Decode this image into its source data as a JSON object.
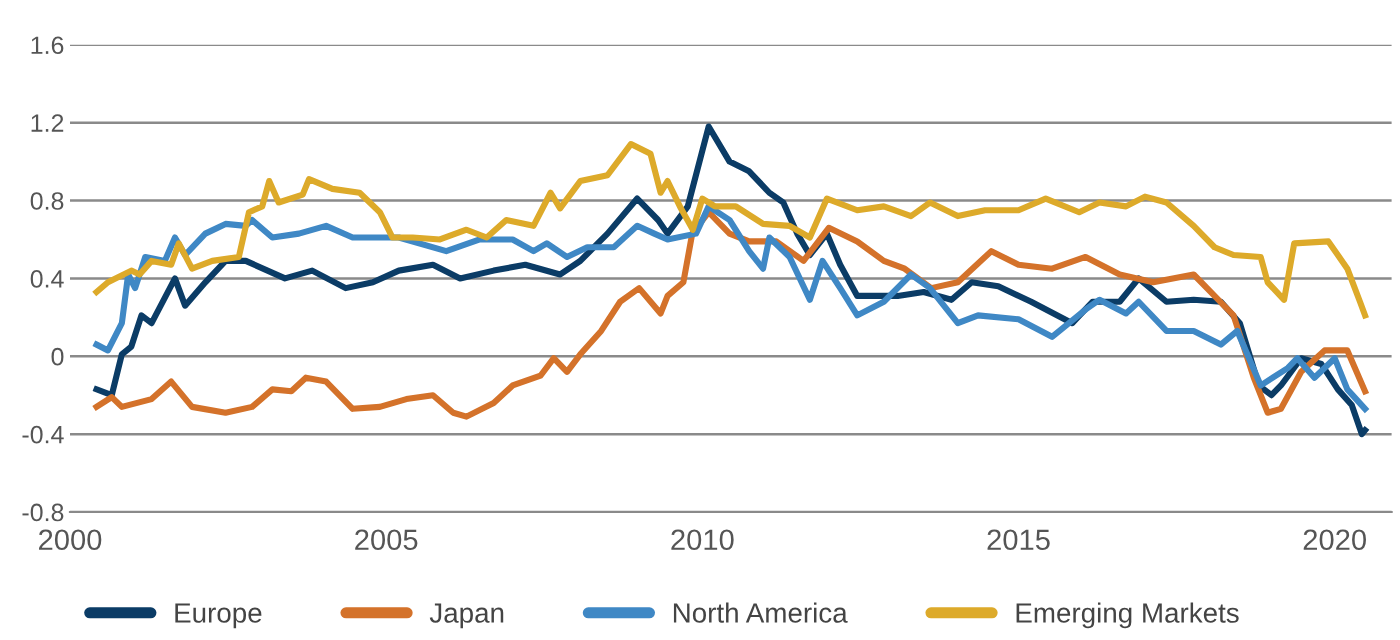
{
  "chart_data": {
    "type": "line",
    "xlim": [
      2000,
      2020.9
    ],
    "xticks": [
      2000,
      2005,
      2010,
      2015,
      2020
    ],
    "ylim": [
      -0.8,
      1.6
    ],
    "yticks": [
      {
        "value": -0.8,
        "label": "-0.8"
      },
      {
        "value": -0.4,
        "label": "-0.4"
      },
      0,
      0.4,
      0.8,
      1.2,
      1.6
    ],
    "grid": "y",
    "legend": "bottom",
    "line_style": "solid",
    "marker": "none",
    "series": [
      {
        "name": "Europe",
        "color": "#0b3c66",
        "x": [
          2000.42,
          2000.66,
          2000.82,
          2000.97,
          2001.13,
          2001.29,
          2001.66,
          2001.82,
          2002.14,
          2002.46,
          2002.78,
          2003.4,
          2003.83,
          2004.36,
          2004.79,
          2005.2,
          2005.74,
          2006.17,
          2006.7,
          2007.2,
          2007.75,
          2008.07,
          2008.5,
          2008.97,
          2009.3,
          2009.45,
          2009.77,
          2010.1,
          2010.43,
          2010.74,
          2011.06,
          2011.28,
          2011.5,
          2011.7,
          2011.97,
          2012.18,
          2012.45,
          2012.66,
          2013.09,
          2013.5,
          2013.94,
          2014.26,
          2014.68,
          2015.2,
          2015.85,
          2016.17,
          2016.6,
          2016.9,
          2017.34,
          2017.77,
          2018.2,
          2018.5,
          2018.8,
          2019.0,
          2019.15,
          2019.47,
          2019.79,
          2020.05,
          2020.27,
          2020.43,
          2020.48
        ],
        "values": [
          -0.17,
          -0.2,
          0.01,
          0.05,
          0.21,
          0.17,
          0.4,
          0.26,
          0.38,
          0.49,
          0.49,
          0.4,
          0.44,
          0.35,
          0.38,
          0.44,
          0.47,
          0.4,
          0.44,
          0.47,
          0.42,
          0.49,
          0.63,
          0.81,
          0.7,
          0.63,
          0.77,
          1.18,
          1.0,
          0.95,
          0.84,
          0.79,
          0.63,
          0.52,
          0.63,
          0.47,
          0.31,
          0.31,
          0.31,
          0.33,
          0.29,
          0.38,
          0.36,
          0.28,
          0.17,
          0.28,
          0.28,
          0.4,
          0.28,
          0.29,
          0.28,
          0.17,
          -0.15,
          -0.2,
          -0.15,
          -0.01,
          -0.04,
          -0.17,
          -0.25,
          -0.4,
          -0.38
        ]
      },
      {
        "name": "Japan",
        "color": "#d4722a",
        "x": [
          2000.42,
          2000.66,
          2000.82,
          2001.29,
          2001.6,
          2001.93,
          2002.46,
          2002.88,
          2003.2,
          2003.5,
          2003.73,
          2004.05,
          2004.47,
          2004.9,
          2005.32,
          2005.74,
          2006.06,
          2006.27,
          2006.7,
          2007.0,
          2007.44,
          2007.65,
          2007.86,
          2008.07,
          2008.4,
          2008.7,
          2009.0,
          2009.34,
          2009.45,
          2009.7,
          2009.84,
          2010.1,
          2010.43,
          2010.74,
          2011.17,
          2011.6,
          2012.0,
          2012.45,
          2012.87,
          2013.2,
          2013.62,
          2014.04,
          2014.57,
          2015.0,
          2015.53,
          2016.06,
          2016.6,
          2017.13,
          2017.77,
          2018.1,
          2018.4,
          2018.72,
          2018.94,
          2019.15,
          2019.47,
          2019.84,
          2020.2,
          2020.48
        ],
        "values": [
          -0.26,
          -0.21,
          -0.26,
          -0.22,
          -0.13,
          -0.26,
          -0.29,
          -0.26,
          -0.17,
          -0.18,
          -0.11,
          -0.13,
          -0.27,
          -0.26,
          -0.22,
          -0.2,
          -0.29,
          -0.31,
          -0.24,
          -0.15,
          -0.1,
          -0.01,
          -0.08,
          0.01,
          0.13,
          0.28,
          0.35,
          0.22,
          0.31,
          0.38,
          0.63,
          0.74,
          0.63,
          0.59,
          0.59,
          0.49,
          0.66,
          0.59,
          0.49,
          0.45,
          0.35,
          0.38,
          0.54,
          0.47,
          0.45,
          0.51,
          0.42,
          0.38,
          0.42,
          0.31,
          0.21,
          -0.11,
          -0.29,
          -0.27,
          -0.08,
          0.03,
          0.03,
          -0.18
        ]
      },
      {
        "name": "North America",
        "color": "#3f88c5",
        "x": [
          2000.42,
          2000.6,
          2000.82,
          2000.92,
          2001.03,
          2001.19,
          2001.5,
          2001.66,
          2001.82,
          2002.14,
          2002.46,
          2002.78,
          2002.88,
          2003.2,
          2003.62,
          2004.05,
          2004.47,
          2005.2,
          2005.95,
          2006.48,
          2007.0,
          2007.33,
          2007.54,
          2007.86,
          2008.18,
          2008.6,
          2008.97,
          2009.24,
          2009.45,
          2009.9,
          2010.1,
          2010.43,
          2010.74,
          2010.96,
          2011.06,
          2011.38,
          2011.7,
          2011.9,
          2012.18,
          2012.45,
          2012.87,
          2013.3,
          2013.6,
          2014.04,
          2014.36,
          2015.0,
          2015.53,
          2016.06,
          2016.28,
          2016.7,
          2016.9,
          2017.34,
          2017.77,
          2018.2,
          2018.46,
          2018.83,
          2019.26,
          2019.41,
          2019.68,
          2020.0,
          2020.2,
          2020.48
        ],
        "values": [
          0.06,
          0.03,
          0.17,
          0.42,
          0.35,
          0.51,
          0.49,
          0.61,
          0.52,
          0.63,
          0.68,
          0.67,
          0.7,
          0.61,
          0.63,
          0.67,
          0.61,
          0.61,
          0.54,
          0.6,
          0.6,
          0.54,
          0.58,
          0.51,
          0.56,
          0.56,
          0.67,
          0.63,
          0.6,
          0.63,
          0.77,
          0.7,
          0.54,
          0.45,
          0.61,
          0.51,
          0.29,
          0.49,
          0.35,
          0.21,
          0.28,
          0.42,
          0.35,
          0.17,
          0.21,
          0.19,
          0.1,
          0.24,
          0.29,
          0.22,
          0.28,
          0.13,
          0.13,
          0.06,
          0.13,
          -0.15,
          -0.06,
          -0.01,
          -0.11,
          -0.01,
          -0.17,
          -0.27
        ]
      },
      {
        "name": "Emerging Markets",
        "color": "#ddaa2a",
        "x": [
          2000.42,
          2000.6,
          2000.97,
          2001.1,
          2001.29,
          2001.6,
          2001.72,
          2001.93,
          2002.25,
          2002.67,
          2002.83,
          2003.04,
          2003.15,
          2003.3,
          2003.68,
          2003.78,
          2004.15,
          2004.58,
          2004.9,
          2005.1,
          2005.42,
          2005.85,
          2006.27,
          2006.59,
          2006.9,
          2007.33,
          2007.6,
          2007.75,
          2008.07,
          2008.5,
          2008.87,
          2009.18,
          2009.34,
          2009.45,
          2009.66,
          2009.85,
          2010.0,
          2010.2,
          2010.53,
          2010.96,
          2011.38,
          2011.7,
          2011.97,
          2012.45,
          2012.87,
          2013.3,
          2013.6,
          2014.04,
          2014.47,
          2015.0,
          2015.43,
          2015.96,
          2016.28,
          2016.7,
          2017.0,
          2017.34,
          2017.77,
          2018.1,
          2018.4,
          2018.83,
          2018.94,
          2019.2,
          2019.36,
          2019.9,
          2020.2,
          2020.4,
          2020.48
        ],
        "values": [
          0.33,
          0.38,
          0.44,
          0.42,
          0.49,
          0.47,
          0.58,
          0.45,
          0.49,
          0.51,
          0.74,
          0.77,
          0.9,
          0.79,
          0.83,
          0.91,
          0.86,
          0.84,
          0.74,
          0.61,
          0.61,
          0.6,
          0.65,
          0.61,
          0.7,
          0.67,
          0.84,
          0.76,
          0.9,
          0.93,
          1.09,
          1.04,
          0.84,
          0.9,
          0.76,
          0.65,
          0.81,
          0.77,
          0.77,
          0.68,
          0.67,
          0.61,
          0.81,
          0.75,
          0.77,
          0.72,
          0.79,
          0.72,
          0.75,
          0.75,
          0.81,
          0.74,
          0.79,
          0.77,
          0.82,
          0.79,
          0.67,
          0.56,
          0.52,
          0.51,
          0.38,
          0.29,
          0.58,
          0.59,
          0.45,
          0.28,
          0.21
        ]
      }
    ]
  }
}
